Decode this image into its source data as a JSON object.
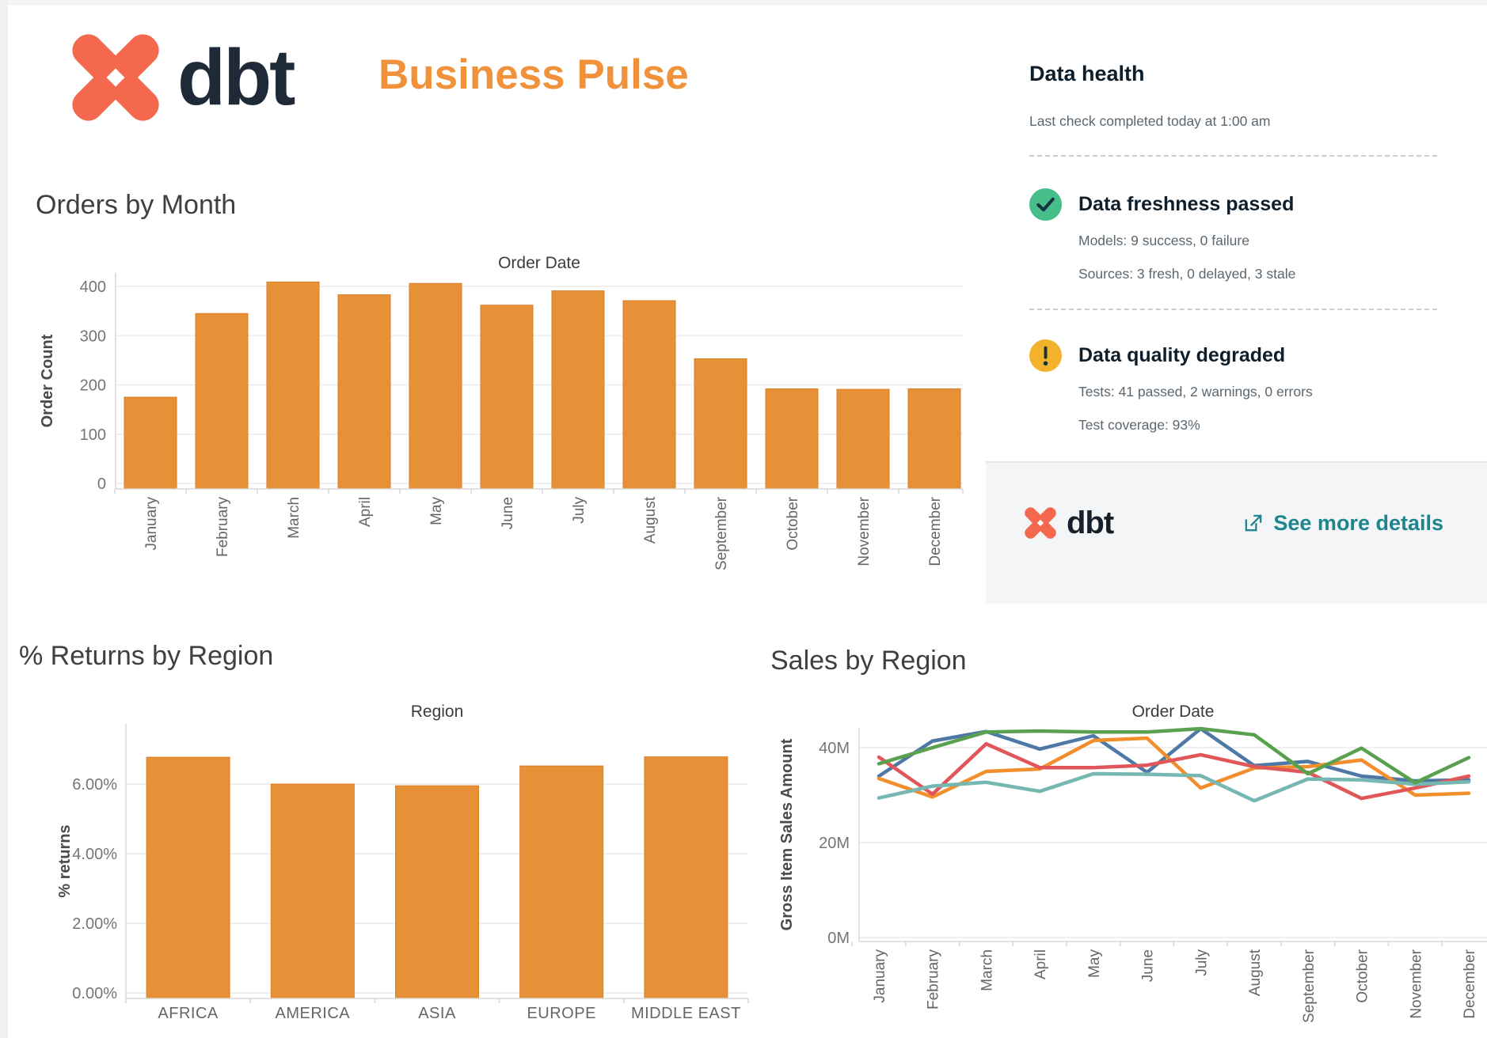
{
  "header": {
    "brand": "dbt",
    "title": "Business Pulse",
    "brand_color": "#F4694D",
    "title_color": "#F0923B"
  },
  "chart_data": [
    {
      "id": "orders-by-month",
      "type": "bar",
      "title": "Orders by Month",
      "axis_title": "Order Date",
      "xlabel": "",
      "ylabel": "Order Count",
      "categories": [
        "January",
        "February",
        "March",
        "April",
        "May",
        "June",
        "July",
        "August",
        "September",
        "October",
        "November",
        "December"
      ],
      "values": [
        175,
        345,
        409,
        383,
        406,
        362,
        391,
        371,
        253,
        192,
        191,
        192
      ],
      "yticks": [
        0,
        100,
        200,
        300,
        400
      ],
      "ylim": [
        0,
        430
      ],
      "grid": true,
      "legend": "none",
      "bar_color": "#E69138"
    },
    {
      "id": "returns-by-region",
      "type": "bar",
      "title": "% Returns by Region",
      "axis_title": "Region",
      "xlabel": "",
      "ylabel": "% returns",
      "categories": [
        "AFRICA",
        "AMERICA",
        "ASIA",
        "EUROPE",
        "MIDDLE EAST"
      ],
      "values": [
        6.77,
        6.0,
        5.95,
        6.52,
        6.78
      ],
      "yticks": [
        0,
        2,
        4,
        6
      ],
      "ytick_format": "percent2",
      "ylim": [
        0,
        7.9
      ],
      "grid": true,
      "legend": "none",
      "bar_color": "#E69138"
    },
    {
      "id": "sales-by-region",
      "type": "line",
      "title": "Sales by Region",
      "axis_title": "Order Date",
      "xlabel": "",
      "ylabel": "Gross Item Sales Amount",
      "categories": [
        "January",
        "February",
        "March",
        "April",
        "May",
        "June",
        "July",
        "August",
        "September",
        "October",
        "November",
        "December"
      ],
      "yticks": [
        0,
        20,
        40
      ],
      "ytick_format": "millions",
      "ylim": [
        0,
        44
      ],
      "grid": true,
      "legend": "none",
      "series": [
        {
          "name": "blue",
          "color": "#4E79A7",
          "values": [
            34.0,
            41.4,
            43.4,
            39.7,
            42.5,
            34.8,
            44.0,
            36.2,
            37.1,
            34.0,
            33.0,
            33.2
          ]
        },
        {
          "name": "orange",
          "color": "#F28E2B",
          "values": [
            33.5,
            29.6,
            35.0,
            35.5,
            41.5,
            42.0,
            31.5,
            35.7,
            36.0,
            37.4,
            30.0,
            30.4
          ]
        },
        {
          "name": "red",
          "color": "#E15759",
          "values": [
            38.0,
            30.2,
            40.8,
            35.8,
            35.8,
            36.3,
            38.5,
            36.0,
            34.8,
            29.3,
            31.5,
            34.0
          ]
        },
        {
          "name": "teal",
          "color": "#76B7B2",
          "values": [
            29.4,
            31.9,
            32.7,
            30.8,
            34.5,
            34.4,
            34.1,
            28.8,
            33.4,
            33.2,
            32.3,
            32.8
          ]
        },
        {
          "name": "green",
          "color": "#59A14F",
          "values": [
            36.6,
            40.0,
            43.3,
            43.5,
            43.3,
            43.3,
            44.0,
            42.7,
            34.5,
            39.9,
            32.6,
            37.9
          ]
        }
      ]
    }
  ],
  "data_health": {
    "title": "Data health",
    "last_check": "Last check completed today at 1:00 am",
    "sections": [
      {
        "status": "Data freshness passed",
        "icon": "check-icon",
        "icon_color": "#47BE8A",
        "lines": [
          "Models: 9 success, 0 failure",
          "Sources: 3 fresh, 0 delayed, 3 stale"
        ]
      },
      {
        "status": "Data quality degraded",
        "icon": "warning-icon",
        "icon_color": "#F2B22B",
        "lines": [
          "Tests: 41 passed, 2 warnings, 0 errors",
          "Test coverage: 93%"
        ]
      }
    ],
    "footer": {
      "brand": "dbt",
      "link_label": "See more details",
      "link_color": "#1F858D"
    }
  }
}
